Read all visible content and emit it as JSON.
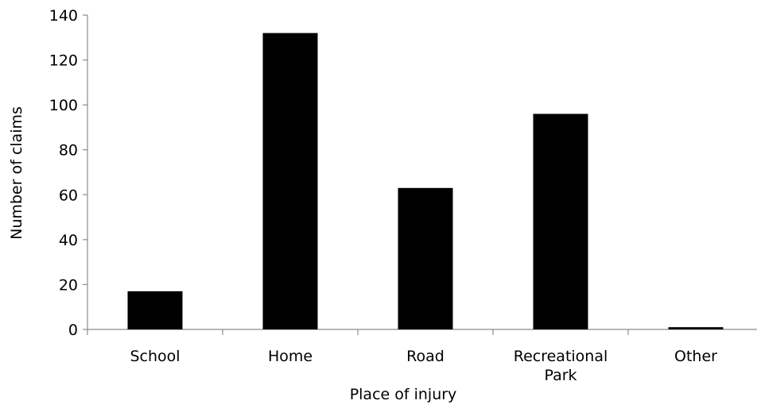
{
  "chart_data": {
    "type": "bar",
    "title": "",
    "xlabel": "Place of injury",
    "ylabel": "Number of claims",
    "categories": [
      [
        "School"
      ],
      [
        "Home"
      ],
      [
        "Road"
      ],
      [
        "Recreational",
        "Park"
      ],
      [
        "Other"
      ]
    ],
    "values": [
      17,
      132,
      63,
      96,
      1
    ],
    "ylim": [
      0,
      140
    ],
    "yticks": [
      "0",
      "20",
      "40",
      "60",
      "80",
      "100",
      "120",
      "140"
    ],
    "grid": false,
    "legend": "none",
    "bar_color": "#000000",
    "axis_color": "#8c8c8c"
  }
}
